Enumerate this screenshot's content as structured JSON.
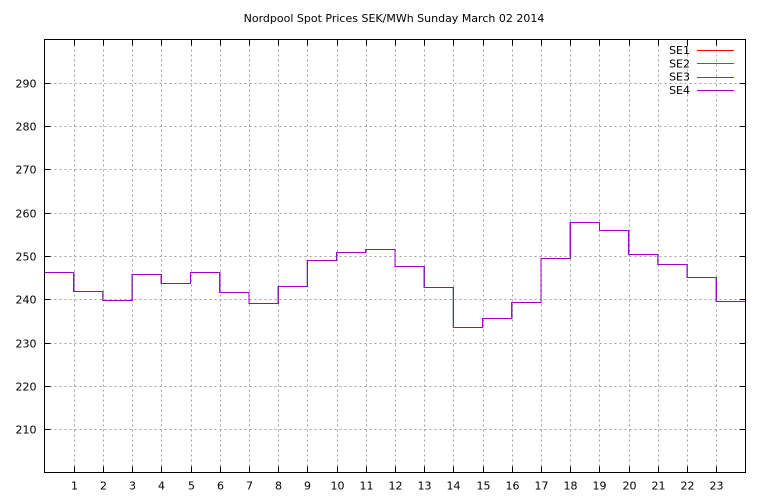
{
  "chart_data": {
    "type": "line",
    "title": "Nordpool Spot Prices SEK/MWh Sunday March 02 2014",
    "xlabel": "",
    "ylabel": "",
    "xlim": [
      0,
      24
    ],
    "ylim": [
      200,
      300
    ],
    "x_ticks": [
      1,
      2,
      3,
      4,
      5,
      6,
      7,
      8,
      9,
      10,
      11,
      12,
      13,
      14,
      15,
      16,
      17,
      18,
      19,
      20,
      21,
      22,
      23
    ],
    "y_ticks": [
      210,
      220,
      230,
      240,
      250,
      260,
      270,
      280,
      290
    ],
    "grid": true,
    "legend_position": "top-right",
    "step": true,
    "hours": [
      0,
      1,
      2,
      3,
      4,
      5,
      6,
      7,
      8,
      9,
      10,
      11,
      12,
      13,
      14,
      15,
      16,
      17,
      18,
      19,
      20,
      21,
      22,
      23
    ],
    "series": [
      {
        "name": "SE1",
        "color": "#ff0000",
        "values": [
          246.3,
          241.9,
          239.8,
          245.9,
          243.8,
          246.3,
          241.6,
          239.1,
          243.1,
          249.0,
          250.9,
          251.6,
          247.7,
          242.8,
          233.6,
          235.7,
          239.4,
          249.5,
          257.8,
          256.0,
          250.5,
          248.1,
          245.2,
          239.6
        ]
      },
      {
        "name": "SE2",
        "color": "#00a000",
        "values": [
          246.3,
          241.9,
          239.8,
          245.9,
          243.8,
          246.3,
          241.6,
          239.1,
          243.1,
          249.0,
          250.9,
          251.6,
          247.7,
          242.8,
          233.6,
          235.7,
          239.4,
          249.5,
          257.8,
          256.0,
          250.5,
          248.1,
          245.2,
          239.6
        ]
      },
      {
        "name": "SE3",
        "color": "#0066cc",
        "values": [
          246.3,
          241.9,
          239.8,
          245.9,
          243.8,
          246.3,
          241.6,
          239.1,
          243.1,
          249.0,
          250.9,
          251.6,
          247.7,
          242.8,
          233.6,
          235.7,
          239.4,
          249.5,
          257.8,
          256.0,
          250.5,
          248.1,
          245.2,
          239.6
        ]
      },
      {
        "name": "SE4",
        "color": "#a000c8",
        "values": [
          246.3,
          241.9,
          239.8,
          245.9,
          243.8,
          246.3,
          241.6,
          239.1,
          243.1,
          249.0,
          250.9,
          251.6,
          247.7,
          242.8,
          233.6,
          235.7,
          239.4,
          249.5,
          257.8,
          256.0,
          250.5,
          248.1,
          245.2,
          239.6
        ]
      }
    ]
  }
}
